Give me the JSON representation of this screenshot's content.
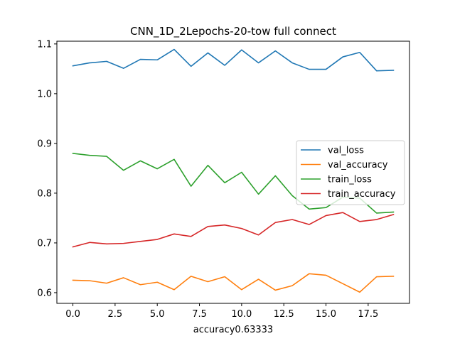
{
  "chart_data": {
    "type": "line",
    "title": "CNN_1D_2Lepochs-20-tow full connect",
    "xlabel": "accuracy0.63333",
    "ylabel": "",
    "xlim": [
      -0.95,
      19.95
    ],
    "ylim": [
      0.5785,
      1.1055
    ],
    "xticks": [
      0.0,
      2.5,
      5.0,
      7.5,
      10.0,
      12.5,
      15.0,
      17.5
    ],
    "xtick_labels": [
      "0.0",
      "2.5",
      "5.0",
      "7.5",
      "10.0",
      "12.5",
      "15.0",
      "17.5"
    ],
    "yticks": [
      0.6,
      0.7,
      0.8,
      0.9,
      1.0,
      1.1
    ],
    "ytick_labels": [
      "0.6",
      "0.7",
      "0.8",
      "0.9",
      "1.0",
      "1.1"
    ],
    "grid": false,
    "legend_position": "center-right",
    "x": [
      0,
      1,
      2,
      3,
      4,
      5,
      6,
      7,
      8,
      9,
      10,
      11,
      12,
      13,
      14,
      15,
      16,
      17,
      18,
      19
    ],
    "series": [
      {
        "name": "val_loss",
        "color": "#1f77b4",
        "values": [
          1.056,
          1.062,
          1.065,
          1.051,
          1.069,
          1.068,
          1.089,
          1.055,
          1.082,
          1.057,
          1.088,
          1.062,
          1.086,
          1.062,
          1.049,
          1.049,
          1.074,
          1.083,
          1.046,
          1.047
        ]
      },
      {
        "name": "val_accuracy",
        "color": "#ff7f0e",
        "values": [
          0.625,
          0.624,
          0.619,
          0.63,
          0.616,
          0.621,
          0.606,
          0.633,
          0.622,
          0.632,
          0.606,
          0.627,
          0.605,
          0.614,
          0.638,
          0.635,
          0.618,
          0.601,
          0.632,
          0.633
        ]
      },
      {
        "name": "train_loss",
        "color": "#2ca02c",
        "values": [
          0.88,
          0.876,
          0.874,
          0.846,
          0.865,
          0.849,
          0.868,
          0.814,
          0.856,
          0.821,
          0.842,
          0.798,
          0.835,
          0.795,
          0.768,
          0.771,
          0.792,
          0.79,
          0.76,
          0.762
        ]
      },
      {
        "name": "train_accuracy",
        "color": "#d62728",
        "values": [
          0.692,
          0.701,
          0.698,
          0.699,
          0.703,
          0.707,
          0.718,
          0.713,
          0.733,
          0.736,
          0.729,
          0.716,
          0.741,
          0.747,
          0.737,
          0.755,
          0.761,
          0.743,
          0.747,
          0.757
        ]
      }
    ]
  }
}
